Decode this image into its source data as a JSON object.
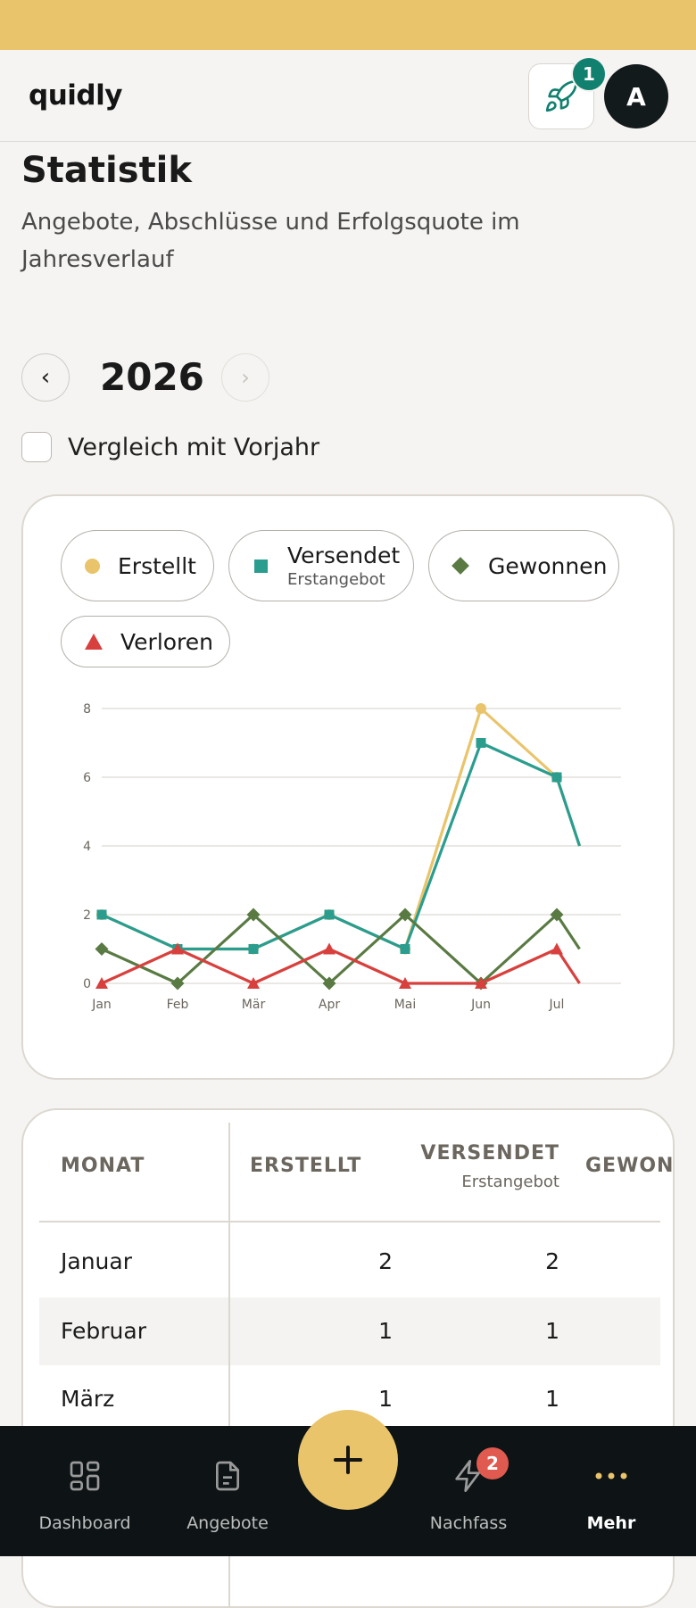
{
  "app": {
    "logo": "quidly"
  },
  "header": {
    "rocket_badge": "1",
    "avatar_initial": "A"
  },
  "page": {
    "title": "Statistik",
    "subtitle": "Angebote, Abschlüsse und Erfolgsquote im Jahresverlauf"
  },
  "year_nav": {
    "year": "2026",
    "prev_icon": "‹",
    "next_icon": "›"
  },
  "compare": {
    "label": "Vergleich mit Vorjahr",
    "checked": false
  },
  "legend": {
    "created": "Erstellt",
    "sent": "Versendet",
    "sent_sub": "Erstangebot",
    "won": "Gewonnen",
    "lost": "Verloren"
  },
  "colors": {
    "accent": "#e9c46a",
    "created": "#e9c46a",
    "sent": "#2a9d8f",
    "won": "#5a7a43",
    "lost": "#d8403d",
    "brand_teal": "#12806f",
    "nav_bg": "#0e1416"
  },
  "chart_data": {
    "type": "line",
    "categories": [
      "Jan",
      "Feb",
      "Mär",
      "Apr",
      "Mai",
      "Jun",
      "Jul"
    ],
    "y_ticks": [
      "0",
      "2",
      "4",
      "6",
      "8"
    ],
    "ylim": [
      0,
      8
    ],
    "grid": true,
    "legend_position": "top",
    "series": [
      {
        "key": "created",
        "name": "Erstellt",
        "marker": "circle",
        "values": [
          2,
          1,
          1,
          2,
          1,
          8,
          6
        ]
      },
      {
        "key": "sent",
        "name": "Versendet",
        "marker": "square",
        "values": [
          2,
          1,
          1,
          2,
          1,
          7,
          6
        ]
      },
      {
        "key": "won",
        "name": "Gewonnen",
        "marker": "diamond",
        "values": [
          1,
          0,
          2,
          0,
          2,
          0,
          2
        ]
      },
      {
        "key": "lost",
        "name": "Verloren",
        "marker": "triangle",
        "values": [
          0,
          1,
          0,
          1,
          0,
          0,
          1
        ]
      }
    ],
    "title": "",
    "xlabel": "",
    "ylabel": ""
  },
  "table": {
    "headers": {
      "month": "MONAT",
      "created": "ERSTELLT",
      "sent": "VERSENDET",
      "sent_sub": "Erstangebot",
      "won": "GEWONN"
    },
    "rows": [
      {
        "month": "Januar",
        "created": "2",
        "sent": "2"
      },
      {
        "month": "Februar",
        "created": "1",
        "sent": "1"
      },
      {
        "month": "März",
        "created": "1",
        "sent": "1"
      }
    ]
  },
  "bottom_nav": {
    "items": [
      {
        "label": "Dashboard",
        "icon": "grid-icon"
      },
      {
        "label": "Angebote",
        "icon": "document-icon"
      },
      {
        "label": "Nachfass",
        "icon": "lightning-icon",
        "badge": "2"
      },
      {
        "label": "Mehr",
        "icon": "more-dots-icon"
      }
    ],
    "fab_icon": "+"
  }
}
